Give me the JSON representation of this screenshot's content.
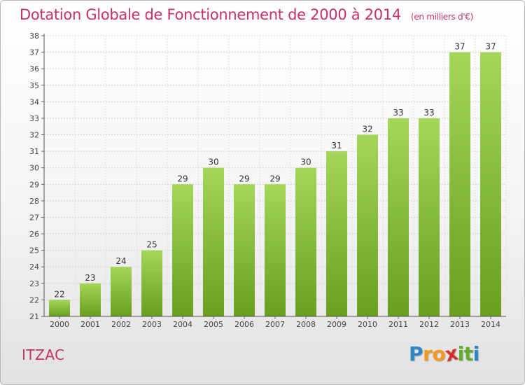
{
  "title": "Dotation Globale de Fonctionnement de 2000 à 2014",
  "unit_note": "(en milliers d'€)",
  "commune": "ITZAC",
  "logo": {
    "letters": [
      "P",
      "r",
      "o",
      "x",
      "i",
      "t",
      "i"
    ],
    "colors": [
      "#2f86c6",
      "#f39a1e",
      "#f39a1e",
      "#d8312a",
      "#5fae2e",
      "#5fae2e",
      "#2f86c6"
    ]
  },
  "colors": {
    "bar_light": "#a3d659",
    "bar_dark": "#6a9e1f",
    "title": "#c8306a"
  },
  "chart_data": {
    "type": "bar",
    "categories": [
      "2000",
      "2001",
      "2002",
      "2003",
      "2004",
      "2005",
      "2006",
      "2007",
      "2008",
      "2009",
      "2010",
      "2011",
      "2012",
      "2013",
      "2014"
    ],
    "values": [
      22,
      23,
      24,
      25,
      29,
      30,
      29,
      29,
      30,
      31,
      32,
      33,
      33,
      37,
      37
    ],
    "title": "Dotation Globale de Fonctionnement de 2000 à 2014",
    "xlabel": "",
    "ylabel": "",
    "ylim": [
      21,
      38
    ],
    "yticks": [
      21,
      22,
      23,
      24,
      25,
      26,
      27,
      28,
      29,
      30,
      31,
      32,
      33,
      34,
      35,
      36,
      37,
      38
    ],
    "grid": true,
    "data_labels": true
  }
}
